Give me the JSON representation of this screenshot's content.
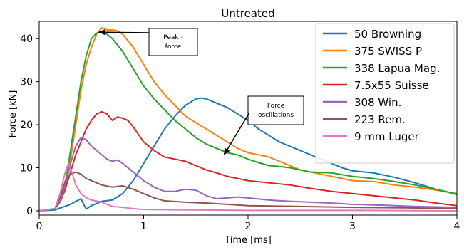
{
  "chart_data": {
    "type": "line",
    "title": "Untreated",
    "xlabel": "Time [ms]",
    "ylabel": "Force [kN]",
    "xlim": [
      0,
      4
    ],
    "ylim": [
      -1,
      44
    ],
    "x_ticks": [
      0,
      1,
      2,
      3,
      4
    ],
    "y_ticks": [
      0,
      10,
      20,
      30,
      40
    ],
    "grid": false,
    "legend_position": "top-right",
    "series": [
      {
        "name": "50 Browning",
        "color": "#1f77b4",
        "points": [
          [
            0,
            0
          ],
          [
            0.15,
            0.2
          ],
          [
            0.3,
            1.5
          ],
          [
            0.4,
            2.8
          ],
          [
            0.45,
            0.4
          ],
          [
            0.5,
            1.2
          ],
          [
            0.6,
            2.2
          ],
          [
            0.7,
            2.5
          ],
          [
            0.8,
            4
          ],
          [
            0.9,
            7
          ],
          [
            1.0,
            11
          ],
          [
            1.1,
            15
          ],
          [
            1.2,
            19
          ],
          [
            1.3,
            22
          ],
          [
            1.4,
            24.5
          ],
          [
            1.5,
            26
          ],
          [
            1.55,
            26.2
          ],
          [
            1.6,
            26
          ],
          [
            1.7,
            25
          ],
          [
            1.8,
            24
          ],
          [
            1.9,
            22.5
          ],
          [
            2.0,
            21
          ],
          [
            2.1,
            19
          ],
          [
            2.2,
            17.5
          ],
          [
            2.3,
            16
          ],
          [
            2.4,
            15
          ],
          [
            2.5,
            14
          ],
          [
            2.6,
            13
          ],
          [
            2.7,
            12
          ],
          [
            2.8,
            11
          ],
          [
            2.9,
            10
          ],
          [
            3.0,
            9.3
          ],
          [
            3.2,
            8.8
          ],
          [
            3.4,
            7.8
          ],
          [
            3.6,
            6.5
          ],
          [
            3.8,
            5
          ],
          [
            4.0,
            3.8
          ]
        ]
      },
      {
        "name": "375 SWISS P",
        "color": "#ff7f0e",
        "points": [
          [
            0,
            0
          ],
          [
            0.15,
            0.5
          ],
          [
            0.2,
            2
          ],
          [
            0.25,
            5
          ],
          [
            0.3,
            12
          ],
          [
            0.35,
            20
          ],
          [
            0.4,
            28
          ],
          [
            0.45,
            34
          ],
          [
            0.5,
            38
          ],
          [
            0.55,
            41
          ],
          [
            0.6,
            42.5
          ],
          [
            0.65,
            42
          ],
          [
            0.7,
            42
          ],
          [
            0.75,
            41.8
          ],
          [
            0.8,
            41
          ],
          [
            0.9,
            38
          ],
          [
            1.0,
            34
          ],
          [
            1.1,
            30
          ],
          [
            1.2,
            27
          ],
          [
            1.3,
            24.5
          ],
          [
            1.4,
            22
          ],
          [
            1.5,
            20.5
          ],
          [
            1.6,
            19
          ],
          [
            1.7,
            17.5
          ],
          [
            1.8,
            16
          ],
          [
            1.9,
            14.5
          ],
          [
            2.0,
            13.5
          ],
          [
            2.1,
            13
          ],
          [
            2.2,
            12.5
          ],
          [
            2.3,
            11.5
          ],
          [
            2.4,
            10.5
          ],
          [
            2.5,
            9.5
          ],
          [
            2.6,
            9
          ],
          [
            2.7,
            8.5
          ],
          [
            2.8,
            8
          ],
          [
            2.9,
            7.5
          ],
          [
            3.0,
            7
          ],
          [
            3.2,
            6.8
          ],
          [
            3.4,
            6
          ],
          [
            3.6,
            5.5
          ],
          [
            3.8,
            4.8
          ],
          [
            4.0,
            4
          ]
        ]
      },
      {
        "name": "338 Lapua Mag.",
        "color": "#2ca02c",
        "points": [
          [
            0,
            0
          ],
          [
            0.15,
            0.5
          ],
          [
            0.2,
            2
          ],
          [
            0.25,
            6
          ],
          [
            0.3,
            14
          ],
          [
            0.35,
            22
          ],
          [
            0.4,
            30
          ],
          [
            0.45,
            36
          ],
          [
            0.5,
            40
          ],
          [
            0.55,
            41.3
          ],
          [
            0.6,
            41.5
          ],
          [
            0.65,
            41
          ],
          [
            0.7,
            40
          ],
          [
            0.8,
            37
          ],
          [
            0.9,
            33
          ],
          [
            1.0,
            29
          ],
          [
            1.1,
            26
          ],
          [
            1.2,
            23.5
          ],
          [
            1.3,
            21
          ],
          [
            1.4,
            19
          ],
          [
            1.5,
            17
          ],
          [
            1.6,
            15.5
          ],
          [
            1.7,
            14.5
          ],
          [
            1.8,
            13.5
          ],
          [
            1.9,
            13
          ],
          [
            2.0,
            12
          ],
          [
            2.1,
            11.2
          ],
          [
            2.2,
            10.5
          ],
          [
            2.3,
            10.3
          ],
          [
            2.4,
            10
          ],
          [
            2.5,
            9.5
          ],
          [
            2.6,
            9
          ],
          [
            2.8,
            8.8
          ],
          [
            3.0,
            8
          ],
          [
            3.2,
            7.5
          ],
          [
            3.4,
            6.8
          ],
          [
            3.6,
            6
          ],
          [
            3.8,
            5
          ],
          [
            4.0,
            3.9
          ]
        ]
      },
      {
        "name": "7.5x55 Suisse",
        "color": "#d62728",
        "points": [
          [
            0,
            0
          ],
          [
            0.15,
            0.5
          ],
          [
            0.2,
            2
          ],
          [
            0.25,
            5
          ],
          [
            0.3,
            9
          ],
          [
            0.35,
            13
          ],
          [
            0.4,
            16
          ],
          [
            0.45,
            19
          ],
          [
            0.5,
            21
          ],
          [
            0.55,
            22.5
          ],
          [
            0.6,
            23
          ],
          [
            0.65,
            22.5
          ],
          [
            0.7,
            21
          ],
          [
            0.75,
            21.8
          ],
          [
            0.8,
            21.5
          ],
          [
            0.85,
            21
          ],
          [
            0.9,
            19.5
          ],
          [
            1.0,
            16
          ],
          [
            1.1,
            14
          ],
          [
            1.2,
            12.5
          ],
          [
            1.3,
            12
          ],
          [
            1.4,
            11.5
          ],
          [
            1.5,
            10.5
          ],
          [
            1.6,
            9.5
          ],
          [
            1.7,
            8.8
          ],
          [
            1.8,
            8
          ],
          [
            1.9,
            7.5
          ],
          [
            2.0,
            7
          ],
          [
            2.2,
            6.5
          ],
          [
            2.4,
            6
          ],
          [
            2.6,
            5.2
          ],
          [
            2.8,
            4.5
          ],
          [
            3.0,
            4
          ],
          [
            3.2,
            3.5
          ],
          [
            3.4,
            3
          ],
          [
            3.6,
            2.5
          ],
          [
            3.8,
            1.8
          ],
          [
            4.0,
            1.2
          ]
        ]
      },
      {
        "name": "308 Win.",
        "color": "#9467bd",
        "points": [
          [
            0,
            0
          ],
          [
            0.15,
            0.5
          ],
          [
            0.2,
            2
          ],
          [
            0.25,
            6
          ],
          [
            0.3,
            11
          ],
          [
            0.35,
            15
          ],
          [
            0.4,
            17
          ],
          [
            0.45,
            16.5
          ],
          [
            0.5,
            15
          ],
          [
            0.55,
            14
          ],
          [
            0.6,
            13
          ],
          [
            0.65,
            12
          ],
          [
            0.7,
            11.5
          ],
          [
            0.75,
            11.8
          ],
          [
            0.8,
            11
          ],
          [
            0.9,
            9
          ],
          [
            1.0,
            7
          ],
          [
            1.1,
            5.5
          ],
          [
            1.2,
            4.5
          ],
          [
            1.3,
            4.5
          ],
          [
            1.4,
            5
          ],
          [
            1.5,
            4.8
          ],
          [
            1.6,
            3.5
          ],
          [
            1.7,
            2.8
          ],
          [
            1.8,
            3
          ],
          [
            1.9,
            3.2
          ],
          [
            2.0,
            3
          ],
          [
            2.2,
            2.5
          ],
          [
            2.4,
            2.2
          ],
          [
            2.6,
            2
          ],
          [
            2.8,
            1.8
          ],
          [
            3.0,
            1.5
          ],
          [
            3.3,
            1.3
          ],
          [
            3.6,
            1
          ],
          [
            4.0,
            0.8
          ]
        ]
      },
      {
        "name": "223 Rem.",
        "color": "#8c564b",
        "points": [
          [
            0,
            0
          ],
          [
            0.15,
            0.5
          ],
          [
            0.2,
            3
          ],
          [
            0.25,
            7
          ],
          [
            0.3,
            8.5
          ],
          [
            0.35,
            9
          ],
          [
            0.4,
            8.5
          ],
          [
            0.45,
            7.5
          ],
          [
            0.5,
            7
          ],
          [
            0.55,
            6.5
          ],
          [
            0.6,
            6
          ],
          [
            0.7,
            5.5
          ],
          [
            0.8,
            5.8
          ],
          [
            0.9,
            5
          ],
          [
            1.0,
            4
          ],
          [
            1.1,
            3
          ],
          [
            1.2,
            2.3
          ],
          [
            1.4,
            2
          ],
          [
            1.6,
            1.8
          ],
          [
            1.8,
            1.5
          ],
          [
            2.0,
            1.2
          ],
          [
            2.5,
            1
          ],
          [
            3.0,
            0.8
          ],
          [
            3.5,
            0.7
          ],
          [
            4.0,
            0.5
          ]
        ]
      },
      {
        "name": "9 mm Luger",
        "color": "#e377c2",
        "points": [
          [
            0,
            0
          ],
          [
            0.15,
            0.5
          ],
          [
            0.2,
            4
          ],
          [
            0.25,
            9
          ],
          [
            0.28,
            11
          ],
          [
            0.3,
            10
          ],
          [
            0.35,
            6
          ],
          [
            0.4,
            4
          ],
          [
            0.45,
            3
          ],
          [
            0.5,
            2.5
          ],
          [
            0.6,
            2
          ],
          [
            0.7,
            1
          ],
          [
            0.8,
            0.8
          ],
          [
            0.9,
            0.5
          ],
          [
            1.0,
            0.3
          ],
          [
            1.5,
            0.2
          ],
          [
            2.0,
            0.1
          ],
          [
            3.0,
            0.1
          ],
          [
            4.0,
            0
          ]
        ]
      }
    ],
    "annotations": [
      {
        "text": "Peak -\nforce",
        "line1": "Peak -",
        "line2": "force",
        "arrow_to": [
          0.57,
          41.5
        ]
      },
      {
        "text": "Force\noscillations",
        "line1": "Force",
        "line2": "oscillations",
        "arrow_to": [
          1.77,
          13
        ]
      }
    ]
  }
}
